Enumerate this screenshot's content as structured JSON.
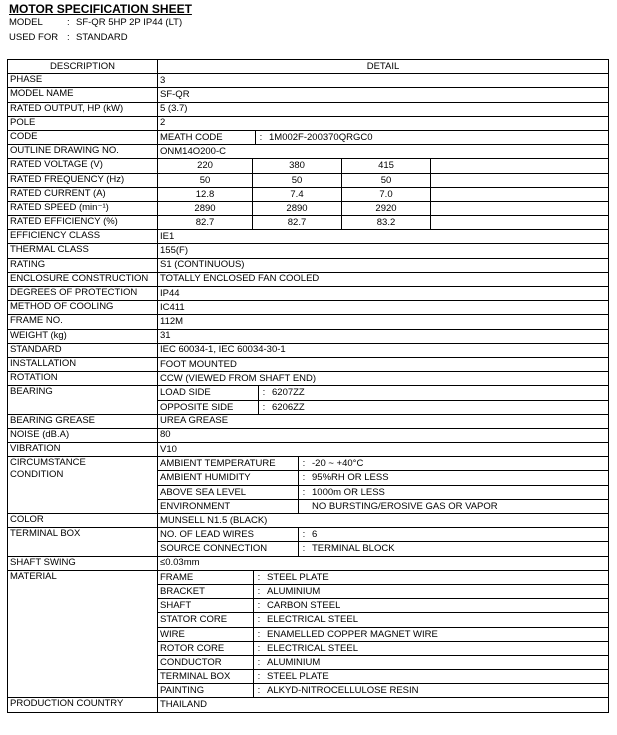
{
  "header": {
    "title": "MOTOR SPECIFICATION SHEET",
    "fields": [
      {
        "label": "MODEL",
        "sep": ":",
        "value": "SF-QR 5HP 2P IP44 (LT)"
      },
      {
        "label": "USED FOR",
        "sep": ":",
        "value": "STANDARD"
      }
    ]
  },
  "table": {
    "columns": [
      "DESCRIPTION",
      "DETAIL"
    ],
    "rows": [
      {
        "label": "PHASE",
        "detail": "3"
      },
      {
        "label": "MODEL NAME",
        "detail": "SF-QR"
      },
      {
        "label": "RATED OUTPUT, HP (kW)",
        "detail": "5 (3.7)"
      },
      {
        "label": "POLE",
        "detail": "2"
      },
      {
        "label": "CODE",
        "items": [
          {
            "key": "MEATH CODE",
            "sep": ":",
            "value": "1M002F-200370QRGC0"
          }
        ]
      },
      {
        "label": "OUTLINE DRAWING NO.",
        "detail": "ONM14O200-C"
      },
      {
        "label": "RATED VOLTAGE (V)",
        "values": [
          "220",
          "380",
          "415"
        ]
      },
      {
        "label": "RATED FREQUENCY (Hz)",
        "values": [
          "50",
          "50",
          "50"
        ]
      },
      {
        "label": "RATED CURRENT (A)",
        "values": [
          "12.8",
          "7.4",
          "7.0"
        ]
      },
      {
        "label": "RATED SPEED (min⁻¹)",
        "values": [
          "2890",
          "2890",
          "2920"
        ]
      },
      {
        "label": "RATED EFFICIENCY (%)",
        "values": [
          "82.7",
          "82.7",
          "83.2"
        ]
      },
      {
        "label": "EFFICIENCY CLASS",
        "detail": "IE1"
      },
      {
        "label": "THERMAL CLASS",
        "detail": "155(F)"
      },
      {
        "label": "RATING",
        "detail": "S1 (CONTINUOUS)"
      },
      {
        "label": "ENCLOSURE CONSTRUCTION",
        "detail": "TOTALLY ENCLOSED FAN COOLED"
      },
      {
        "label": "DEGREES OF PROTECTION",
        "detail": "IP44"
      },
      {
        "label": "METHOD OF COOLING",
        "detail": "IC411"
      },
      {
        "label": "FRAME NO.",
        "detail": "112M"
      },
      {
        "label": "WEIGHT (kg)",
        "detail": "31"
      },
      {
        "label": "STANDARD",
        "detail": "IEC 60034-1, IEC 60034-30-1"
      },
      {
        "label": "INSTALLATION",
        "detail": "FOOT MOUNTED"
      },
      {
        "label": "ROTATION",
        "detail": "CCW (VIEWED FROM SHAFT END)"
      },
      {
        "label": "BEARING",
        "items": [
          {
            "key": "LOAD SIDE",
            "sep": ":",
            "value": "6207ZZ"
          },
          {
            "key": "OPPOSITE SIDE",
            "sep": ":",
            "value": "6206ZZ"
          }
        ]
      },
      {
        "label": "BEARING GREASE",
        "detail": "UREA GREASE"
      },
      {
        "label": "NOISE (dB.A)",
        "detail": "80"
      },
      {
        "label": "VIBRATION",
        "detail": "V10"
      },
      {
        "label": [
          "CIRCUMSTANCE",
          "CONDITION"
        ],
        "items": [
          {
            "key": "AMBIENT TEMPERATURE",
            "sep": ":",
            "value": "-20 ~ +40°C"
          },
          {
            "key": "AMBIENT HUMIDITY",
            "sep": ":",
            "value": "95%RH OR LESS"
          },
          {
            "key": "ABOVE SEA LEVEL",
            "sep": ":",
            "value": "1000m OR LESS"
          },
          {
            "key": "ENVIRONMENT",
            "value": "NO BURSTING/EROSIVE GAS OR VAPOR"
          }
        ]
      },
      {
        "label": "COLOR",
        "detail": "MUNSELL N1.5 (BLACK)"
      },
      {
        "label": "TERMINAL BOX",
        "items": [
          {
            "key": "NO. OF LEAD WIRES",
            "sep": ":",
            "value": "6"
          },
          {
            "key": "SOURCE CONNECTION",
            "sep": ":",
            "value": "TERMINAL BLOCK"
          }
        ]
      },
      {
        "label": "SHAFT SWING",
        "detail": "≤0.03mm"
      },
      {
        "label": "MATERIAL",
        "items": [
          {
            "key": "FRAME",
            "sep": ":",
            "value": "STEEL PLATE"
          },
          {
            "key": "BRACKET",
            "sep": ":",
            "value": "ALUMINIUM"
          },
          {
            "key": "SHAFT",
            "sep": ":",
            "value": "CARBON STEEL"
          },
          {
            "key": "STATOR CORE",
            "sep": ":",
            "value": "ELECTRICAL STEEL"
          },
          {
            "key": "WIRE",
            "sep": ":",
            "value": "ENAMELLED COPPER MAGNET WIRE"
          },
          {
            "key": "ROTOR CORE",
            "sep": ":",
            "value": "ELECTRICAL STEEL"
          },
          {
            "key": "CONDUCTOR",
            "sep": ":",
            "value": "ALUMINIUM"
          },
          {
            "key": "TERMINAL BOX",
            "sep": ":",
            "value": "STEEL PLATE"
          },
          {
            "key": "PAINTING",
            "sep": ":",
            "value": "ALKYD-NITROCELLULOSE RESIN"
          }
        ]
      },
      {
        "label": "PRODUCTION COUNTRY",
        "detail": "THAILAND"
      }
    ]
  }
}
